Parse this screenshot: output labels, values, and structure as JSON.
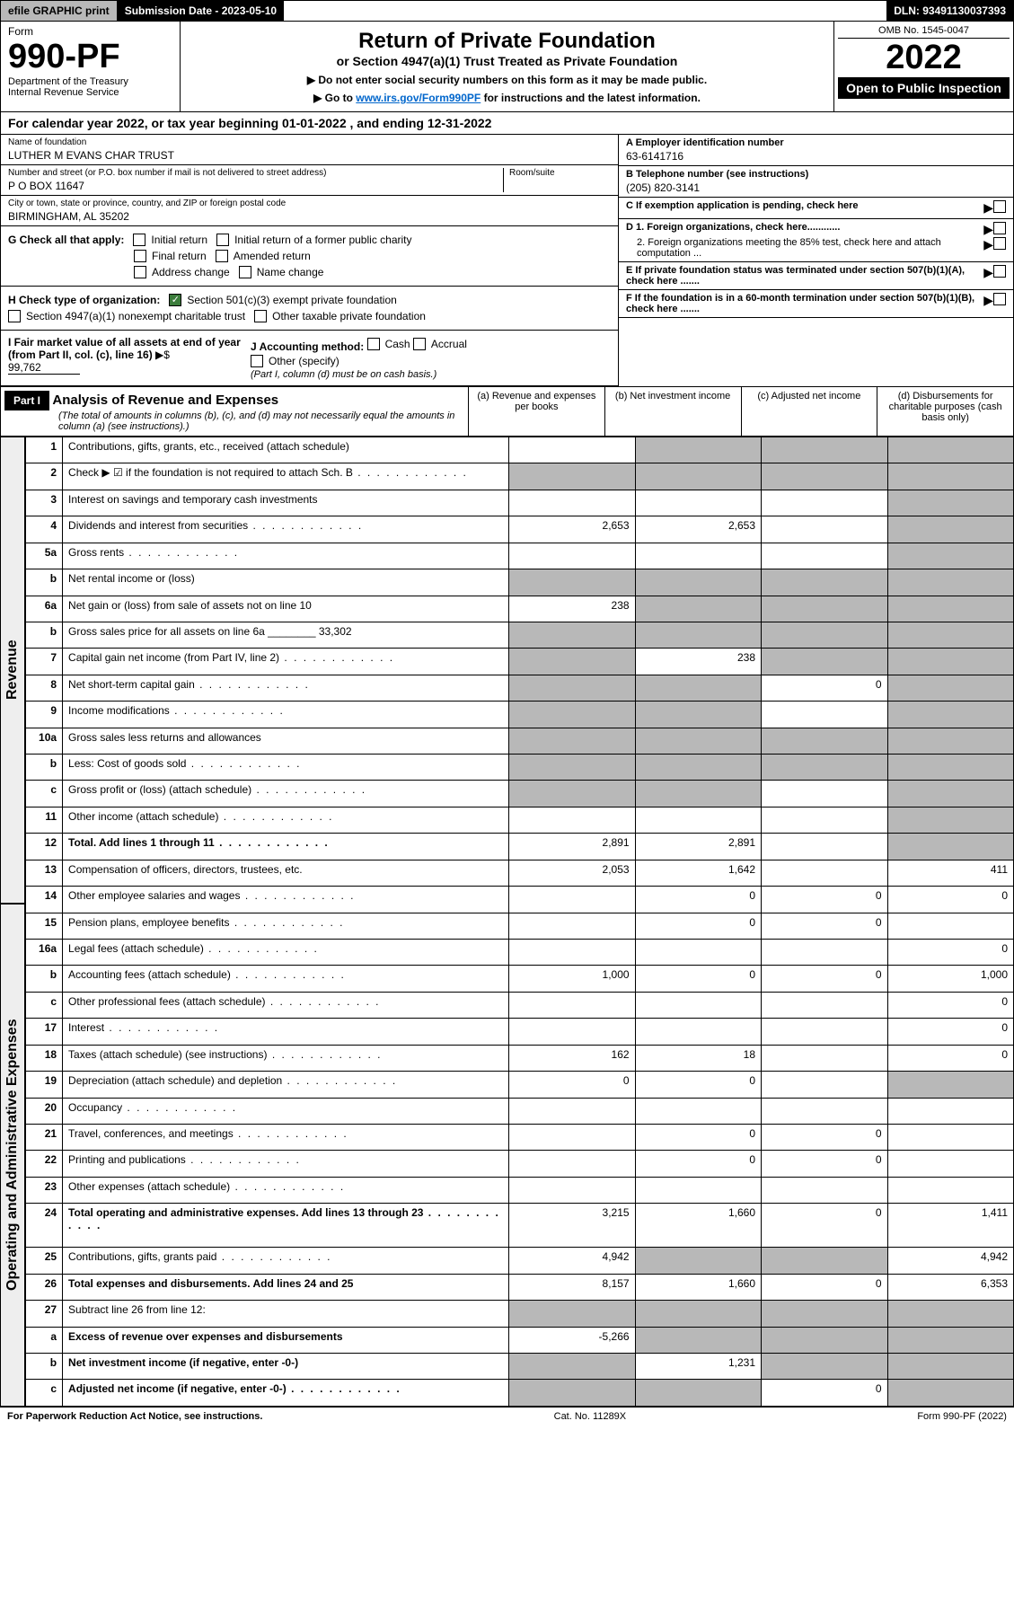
{
  "topbar": {
    "efile": "efile GRAPHIC print",
    "submission": "Submission Date - 2023-05-10",
    "dln": "DLN: 93491130037393"
  },
  "header": {
    "form_label": "Form",
    "form_number": "990-PF",
    "dept": "Department of the Treasury",
    "irs": "Internal Revenue Service",
    "title": "Return of Private Foundation",
    "subtitle": "or Section 4947(a)(1) Trust Treated as Private Foundation",
    "note1": "▶ Do not enter social security numbers on this form as it may be made public.",
    "note2_pre": "▶ Go to ",
    "note2_link": "www.irs.gov/Form990PF",
    "note2_post": " for instructions and the latest information.",
    "omb": "OMB No. 1545-0047",
    "year": "2022",
    "open": "Open to Public Inspection"
  },
  "calyear": "For calendar year 2022, or tax year beginning 01-01-2022                         , and ending 12-31-2022",
  "foundation": {
    "name_label": "Name of foundation",
    "name": "LUTHER M EVANS CHAR TRUST",
    "addr_label": "Number and street (or P.O. box number if mail is not delivered to street address)",
    "room_label": "Room/suite",
    "addr": "P O BOX 11647",
    "city_label": "City or town, state or province, country, and ZIP or foreign postal code",
    "city": "BIRMINGHAM, AL  35202"
  },
  "right_info": {
    "a_label": "A Employer identification number",
    "a_val": "63-6141716",
    "b_label": "B Telephone number (see instructions)",
    "b_val": "(205) 820-3141",
    "c_label": "C If exemption application is pending, check here",
    "d1": "D 1. Foreign organizations, check here............",
    "d2": "2. Foreign organizations meeting the 85% test, check here and attach computation ...",
    "e": "E  If private foundation status was terminated under section 507(b)(1)(A), check here .......",
    "f": "F  If the foundation is in a 60-month termination under section 507(b)(1)(B), check here .......",
    "arrow": "▶"
  },
  "checks": {
    "g_label": "G Check all that apply:",
    "g_items": [
      "Initial return",
      "Initial return of a former public charity",
      "Final return",
      "Amended return",
      "Address change",
      "Name change"
    ],
    "h_label": "H Check type of organization:",
    "h1": "Section 501(c)(3) exempt private foundation",
    "h2": "Section 4947(a)(1) nonexempt charitable trust",
    "h3": "Other taxable private foundation",
    "i_label": "I Fair market value of all assets at end of year (from Part II, col. (c), line 16)",
    "i_val": "99,762",
    "j_label": "J Accounting method:",
    "j_items": [
      "Cash",
      "Accrual",
      "Other (specify)"
    ],
    "j_note": "(Part I, column (d) must be on cash basis.)"
  },
  "part1": {
    "label": "Part I",
    "title": "Analysis of Revenue and Expenses",
    "desc": "(The total of amounts in columns (b), (c), and (d) may not necessarily equal the amounts in column (a) (see instructions).)",
    "cols": [
      "(a)   Revenue and expenses per books",
      "(b)   Net investment income",
      "(c)   Adjusted net income",
      "(d)  Disbursements for charitable purposes (cash basis only)"
    ]
  },
  "side_labels": {
    "revenue": "Revenue",
    "expenses": "Operating and Administrative Expenses"
  },
  "rows": [
    {
      "n": "1",
      "d": "Contributions, gifts, grants, etc., received (attach schedule)",
      "a": "",
      "b": "shaded",
      "c": "shaded",
      "dcol": "shaded"
    },
    {
      "n": "2",
      "d": "Check ▶ ☑ if the foundation is not required to attach Sch. B",
      "dots": true,
      "a": "shaded",
      "b": "shaded",
      "c": "shaded",
      "dcol": "shaded"
    },
    {
      "n": "3",
      "d": "Interest on savings and temporary cash investments",
      "a": "",
      "b": "",
      "c": "",
      "dcol": "shaded"
    },
    {
      "n": "4",
      "d": "Dividends and interest from securities",
      "dots": true,
      "a": "2,653",
      "b": "2,653",
      "c": "",
      "dcol": "shaded"
    },
    {
      "n": "5a",
      "d": "Gross rents",
      "dots": true,
      "a": "",
      "b": "",
      "c": "",
      "dcol": "shaded"
    },
    {
      "n": "b",
      "d": "Net rental income or (loss)",
      "a": "shaded",
      "b": "shaded",
      "c": "shaded",
      "dcol": "shaded"
    },
    {
      "n": "6a",
      "d": "Net gain or (loss) from sale of assets not on line 10",
      "a": "238",
      "b": "shaded",
      "c": "shaded",
      "dcol": "shaded"
    },
    {
      "n": "b",
      "d": "Gross sales price for all assets on line 6a ________ 33,302",
      "a": "shaded",
      "b": "shaded",
      "c": "shaded",
      "dcol": "shaded"
    },
    {
      "n": "7",
      "d": "Capital gain net income (from Part IV, line 2)",
      "dots": true,
      "a": "shaded",
      "b": "238",
      "c": "shaded",
      "dcol": "shaded"
    },
    {
      "n": "8",
      "d": "Net short-term capital gain",
      "dots": true,
      "a": "shaded",
      "b": "shaded",
      "c": "0",
      "dcol": "shaded"
    },
    {
      "n": "9",
      "d": "Income modifications",
      "dots": true,
      "a": "shaded",
      "b": "shaded",
      "c": "",
      "dcol": "shaded"
    },
    {
      "n": "10a",
      "d": "Gross sales less returns and allowances",
      "a": "shaded",
      "b": "shaded",
      "c": "shaded",
      "dcol": "shaded"
    },
    {
      "n": "b",
      "d": "Less: Cost of goods sold",
      "dots": true,
      "a": "shaded",
      "b": "shaded",
      "c": "shaded",
      "dcol": "shaded"
    },
    {
      "n": "c",
      "d": "Gross profit or (loss) (attach schedule)",
      "dots": true,
      "a": "shaded",
      "b": "shaded",
      "c": "",
      "dcol": "shaded"
    },
    {
      "n": "11",
      "d": "Other income (attach schedule)",
      "dots": true,
      "a": "",
      "b": "",
      "c": "",
      "dcol": "shaded"
    },
    {
      "n": "12",
      "d": "Total. Add lines 1 through 11",
      "dots": true,
      "bold": true,
      "a": "2,891",
      "b": "2,891",
      "c": "",
      "dcol": "shaded"
    },
    {
      "n": "13",
      "d": "Compensation of officers, directors, trustees, etc.",
      "a": "2,053",
      "b": "1,642",
      "c": "",
      "dcol": "411"
    },
    {
      "n": "14",
      "d": "Other employee salaries and wages",
      "dots": true,
      "a": "",
      "b": "0",
      "c": "0",
      "dcol": "0"
    },
    {
      "n": "15",
      "d": "Pension plans, employee benefits",
      "dots": true,
      "a": "",
      "b": "0",
      "c": "0",
      "dcol": ""
    },
    {
      "n": "16a",
      "d": "Legal fees (attach schedule)",
      "dots": true,
      "a": "",
      "b": "",
      "c": "",
      "dcol": "0"
    },
    {
      "n": "b",
      "d": "Accounting fees (attach schedule)",
      "dots": true,
      "a": "1,000",
      "b": "0",
      "c": "0",
      "dcol": "1,000"
    },
    {
      "n": "c",
      "d": "Other professional fees (attach schedule)",
      "dots": true,
      "a": "",
      "b": "",
      "c": "",
      "dcol": "0"
    },
    {
      "n": "17",
      "d": "Interest",
      "dots": true,
      "a": "",
      "b": "",
      "c": "",
      "dcol": "0"
    },
    {
      "n": "18",
      "d": "Taxes (attach schedule) (see instructions)",
      "dots": true,
      "a": "162",
      "b": "18",
      "c": "",
      "dcol": "0"
    },
    {
      "n": "19",
      "d": "Depreciation (attach schedule) and depletion",
      "dots": true,
      "a": "0",
      "b": "0",
      "c": "",
      "dcol": "shaded"
    },
    {
      "n": "20",
      "d": "Occupancy",
      "dots": true,
      "a": "",
      "b": "",
      "c": "",
      "dcol": ""
    },
    {
      "n": "21",
      "d": "Travel, conferences, and meetings",
      "dots": true,
      "a": "",
      "b": "0",
      "c": "0",
      "dcol": ""
    },
    {
      "n": "22",
      "d": "Printing and publications",
      "dots": true,
      "a": "",
      "b": "0",
      "c": "0",
      "dcol": ""
    },
    {
      "n": "23",
      "d": "Other expenses (attach schedule)",
      "dots": true,
      "a": "",
      "b": "",
      "c": "",
      "dcol": ""
    },
    {
      "n": "24",
      "d": "Total operating and administrative expenses. Add lines 13 through 23",
      "dots": true,
      "bold": true,
      "a": "3,215",
      "b": "1,660",
      "c": "0",
      "dcol": "1,411"
    },
    {
      "n": "25",
      "d": "Contributions, gifts, grants paid",
      "dots": true,
      "a": "4,942",
      "b": "shaded",
      "c": "shaded",
      "dcol": "4,942"
    },
    {
      "n": "26",
      "d": "Total expenses and disbursements. Add lines 24 and 25",
      "bold": true,
      "a": "8,157",
      "b": "1,660",
      "c": "0",
      "dcol": "6,353"
    },
    {
      "n": "27",
      "d": "Subtract line 26 from line 12:",
      "a": "shaded",
      "b": "shaded",
      "c": "shaded",
      "dcol": "shaded"
    },
    {
      "n": "a",
      "d": "Excess of revenue over expenses and disbursements",
      "bold": true,
      "a": "-5,266",
      "b": "shaded",
      "c": "shaded",
      "dcol": "shaded"
    },
    {
      "n": "b",
      "d": "Net investment income (if negative, enter -0-)",
      "bold": true,
      "a": "shaded",
      "b": "1,231",
      "c": "shaded",
      "dcol": "shaded"
    },
    {
      "n": "c",
      "d": "Adjusted net income (if negative, enter -0-)",
      "dots": true,
      "bold": true,
      "a": "shaded",
      "b": "shaded",
      "c": "0",
      "dcol": "shaded"
    }
  ],
  "footer": {
    "left": "For Paperwork Reduction Act Notice, see instructions.",
    "mid": "Cat. No. 11289X",
    "right": "Form 990-PF (2022)"
  }
}
